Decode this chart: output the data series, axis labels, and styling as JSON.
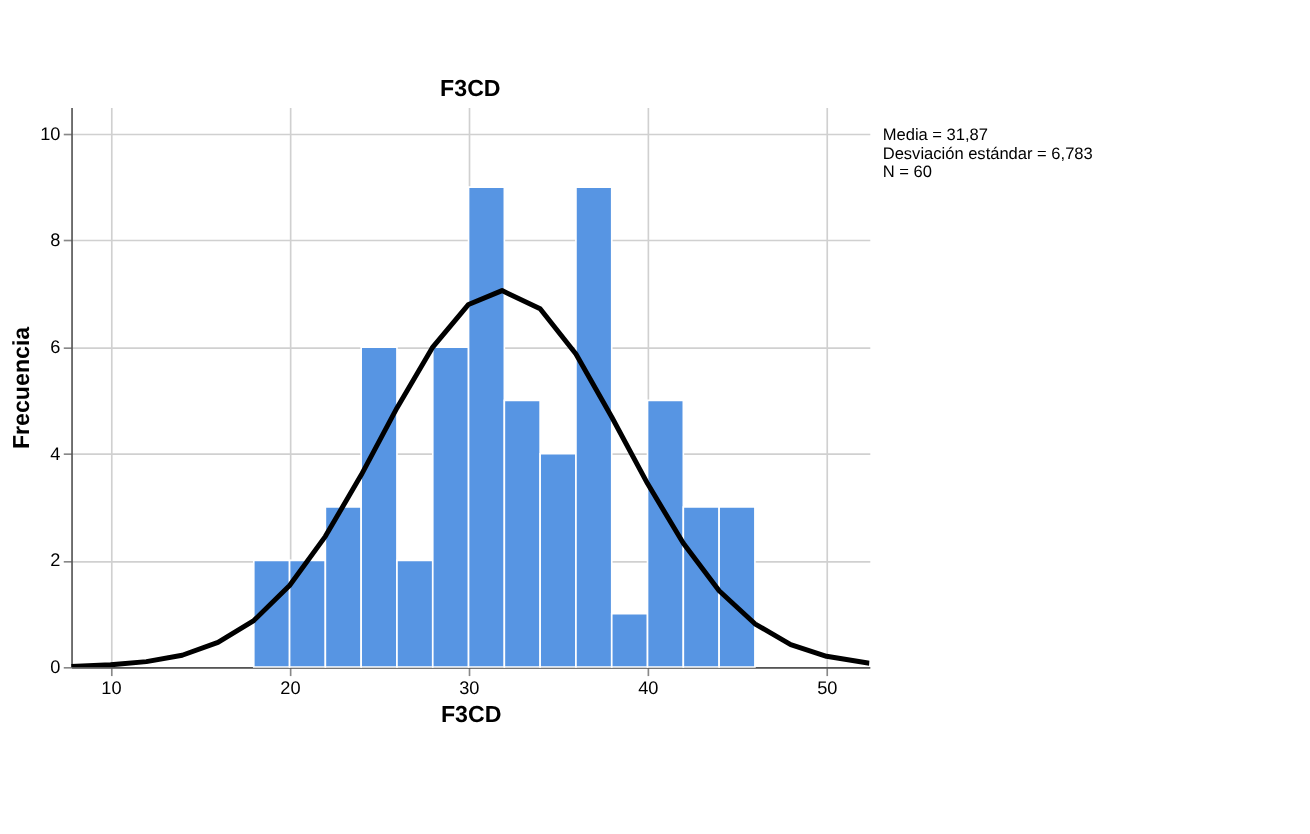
{
  "chart_data": {
    "type": "histogram",
    "title": "F3CD",
    "xlabel": "F3CD",
    "ylabel": "Frecuencia",
    "bins": [
      18,
      20,
      22,
      24,
      26,
      28,
      30,
      32,
      34,
      36,
      38,
      40,
      42,
      44,
      46
    ],
    "values": [
      2,
      2,
      3,
      6,
      2,
      6,
      9,
      5,
      4,
      9,
      1,
      5,
      3,
      3
    ],
    "color": "#5795e3",
    "series": [
      {
        "type": "line",
        "color": "#000000",
        "x": [
          7.8,
          10,
          12,
          14,
          16,
          18,
          20,
          22,
          24,
          26,
          28,
          30,
          31.87,
          34,
          36,
          38,
          40,
          42,
          44,
          46,
          48,
          50,
          52.4
        ],
        "values": [
          0.01,
          0.04,
          0.1,
          0.22,
          0.46,
          0.87,
          1.53,
          2.45,
          3.6,
          4.86,
          6.0,
          6.8,
          7.06,
          6.72,
          5.87,
          4.69,
          3.44,
          2.32,
          1.43,
          0.81,
          0.42,
          0.2,
          0.07
        ]
      }
    ],
    "xlim": [
      7.8,
      52.4
    ],
    "xticks": [
      10,
      20,
      30,
      40,
      50
    ],
    "ylim": [
      0,
      10.5
    ],
    "yticks": [
      0,
      2,
      4,
      6,
      8,
      10
    ],
    "grid": true,
    "annotations": [
      "Media = 31,87",
      "Desviación estándar = 6,783",
      "N = 60"
    ]
  }
}
